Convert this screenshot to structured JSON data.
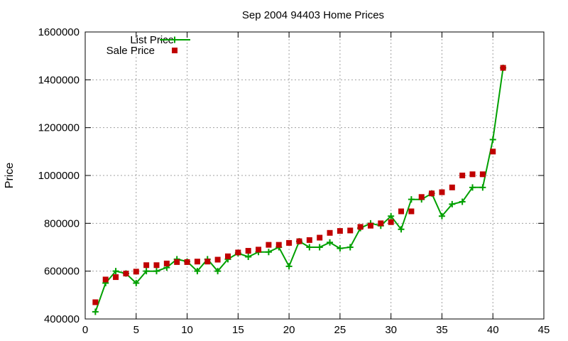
{
  "chart_data": {
    "type": "line",
    "title": "Sep 2004 94403 Home Prices",
    "xlabel": "",
    "ylabel": "Price",
    "xlim": [
      0,
      45
    ],
    "ylim": [
      400000,
      1600000
    ],
    "x_ticks": [
      0,
      5,
      10,
      15,
      20,
      25,
      30,
      35,
      40,
      45
    ],
    "y_ticks": [
      400000,
      600000,
      800000,
      1000000,
      1200000,
      1400000,
      1600000
    ],
    "grid": true,
    "legend_position": "top-left",
    "series": [
      {
        "name": "List Price",
        "style": "linespoints",
        "color": "#00a000",
        "x": [
          1,
          2,
          3,
          4,
          5,
          6,
          7,
          8,
          9,
          10,
          11,
          12,
          13,
          14,
          15,
          16,
          17,
          18,
          19,
          20,
          21,
          22,
          23,
          24,
          25,
          26,
          27,
          28,
          29,
          30,
          31,
          32,
          33,
          34,
          35,
          36,
          37,
          38,
          39,
          40,
          41
        ],
        "y": [
          430000,
          550000,
          600000,
          590000,
          550000,
          600000,
          600000,
          615000,
          650000,
          640000,
          600000,
          650000,
          600000,
          650000,
          675000,
          660000,
          680000,
          680000,
          700000,
          620000,
          725000,
          700000,
          700000,
          720000,
          695000,
          700000,
          780000,
          800000,
          790000,
          830000,
          775000,
          900000,
          900000,
          925000,
          830000,
          880000,
          890000,
          950000,
          950000,
          1150000,
          1450000
        ]
      },
      {
        "name": "Sale Price",
        "style": "points",
        "color": "#c00000",
        "x": [
          1,
          2,
          3,
          4,
          5,
          6,
          7,
          8,
          9,
          10,
          11,
          12,
          13,
          14,
          15,
          16,
          17,
          18,
          19,
          20,
          21,
          22,
          23,
          24,
          25,
          26,
          27,
          28,
          29,
          30,
          31,
          32,
          33,
          34,
          35,
          36,
          37,
          38,
          39,
          40,
          41
        ],
        "y": [
          470000,
          565000,
          575000,
          590000,
          598000,
          625000,
          625000,
          632000,
          638000,
          638000,
          640000,
          640000,
          648000,
          662000,
          678000,
          685000,
          690000,
          710000,
          710000,
          718000,
          725000,
          730000,
          740000,
          760000,
          768000,
          770000,
          785000,
          790000,
          800000,
          805000,
          850000,
          850000,
          910000,
          925000,
          930000,
          950000,
          1000000,
          1005000,
          1005000,
          1100000,
          1450000
        ]
      }
    ]
  }
}
